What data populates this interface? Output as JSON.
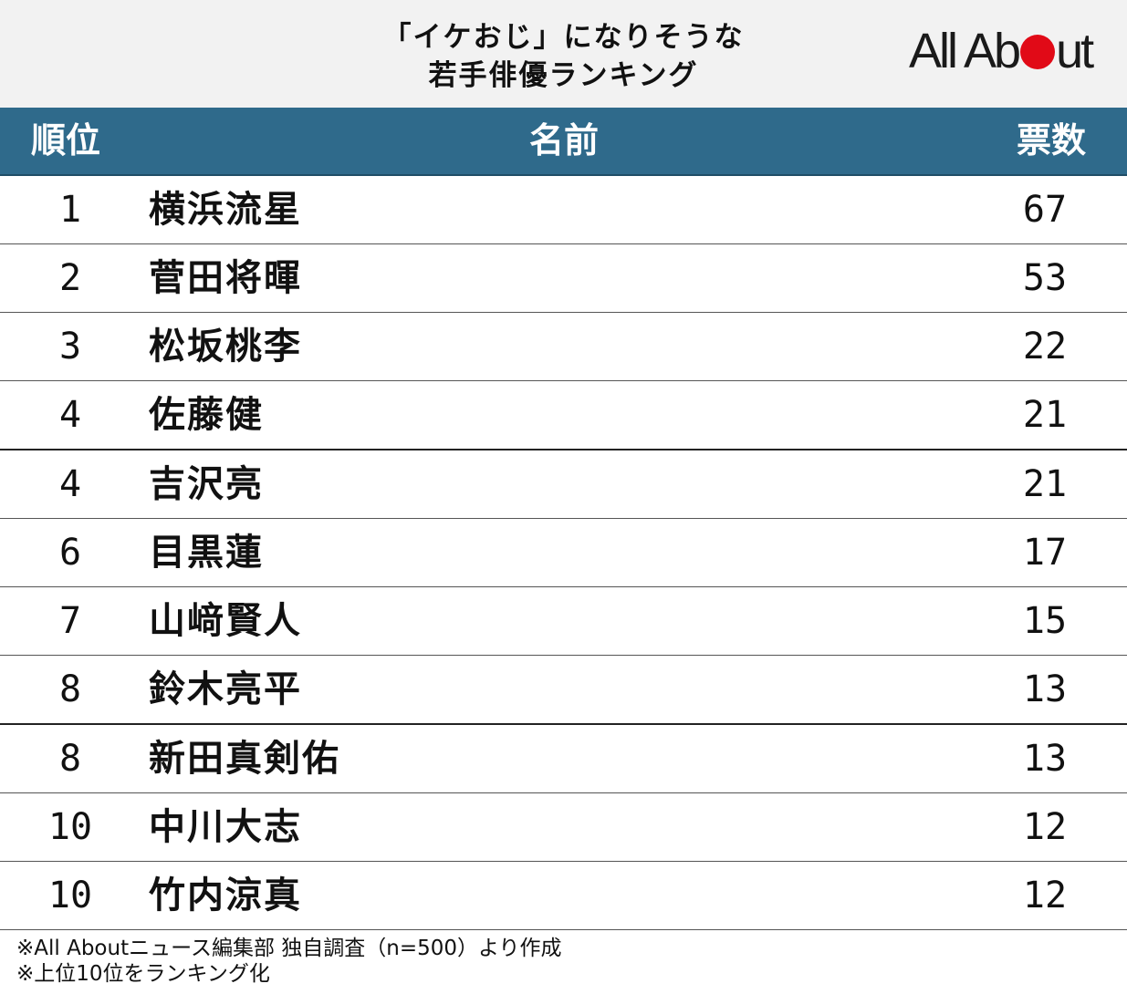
{
  "header": {
    "title_line1": "「イケおじ」になりそうな",
    "title_line2": "若手俳優ランキング",
    "logo_text_part1": "All Ab",
    "logo_text_part2": "ut",
    "logo_accent_color": "#e10a17"
  },
  "table": {
    "headers": {
      "rank": "順位",
      "name": "名前",
      "votes": "票数"
    },
    "header_color": "#2f6a8b"
  },
  "chart_data": {
    "type": "table",
    "columns": [
      "順位",
      "名前",
      "票数"
    ],
    "rows": [
      {
        "rank": "1",
        "name": "横浜流星",
        "votes": 67
      },
      {
        "rank": "2",
        "name": "菅田将暉",
        "votes": 53
      },
      {
        "rank": "3",
        "name": "松坂桃李",
        "votes": 22
      },
      {
        "rank": "4",
        "name": "佐藤健",
        "votes": 21
      },
      {
        "rank": "4",
        "name": "吉沢亮",
        "votes": 21
      },
      {
        "rank": "6",
        "name": "目黒蓮",
        "votes": 17
      },
      {
        "rank": "7",
        "name": "山﨑賢人",
        "votes": 15
      },
      {
        "rank": "8",
        "name": "鈴木亮平",
        "votes": 13
      },
      {
        "rank": "8",
        "name": "新田真剣佑",
        "votes": 13
      },
      {
        "rank": "10",
        "name": "中川大志",
        "votes": 12
      },
      {
        "rank": "10",
        "name": "竹内涼真",
        "votes": 12
      }
    ]
  },
  "footnotes": {
    "line1": "※All Aboutニュース編集部 独自調査（n=500）より作成",
    "line2": "※上位10位をランキング化"
  }
}
